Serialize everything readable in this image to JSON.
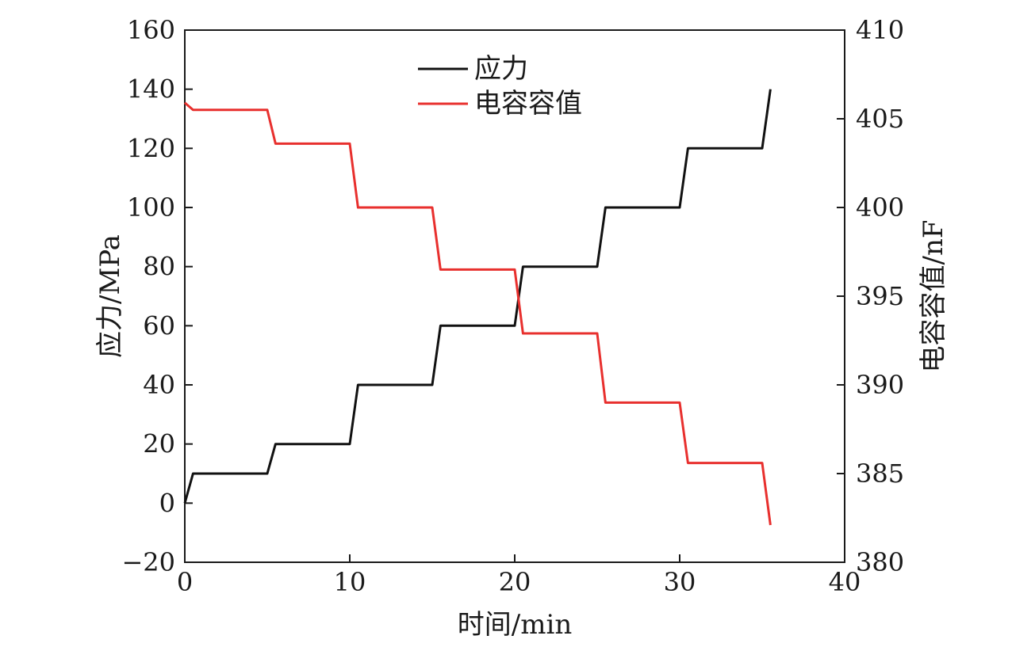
{
  "chart_data": {
    "type": "line",
    "title": "",
    "xlabel": "时间/min",
    "ylabel_left": "应力/MPa",
    "ylabel_right": "电容容值/nF",
    "xlim": [
      0,
      40
    ],
    "ylim_left": [
      -20,
      160
    ],
    "ylim_right": [
      380,
      410
    ],
    "x_ticks": [
      "0",
      "10",
      "20",
      "30",
      "40"
    ],
    "y_left_ticks": [
      "−20",
      "0",
      "20",
      "40",
      "60",
      "80",
      "100",
      "120",
      "140",
      "160"
    ],
    "y_right_ticks": [
      "380",
      "385",
      "390",
      "395",
      "400",
      "405",
      "410"
    ],
    "grid": false,
    "legend_position": "top-center",
    "series": [
      {
        "name": "应力",
        "axis": "left",
        "color": "#111111",
        "x": [
          0,
          0.5,
          5,
          5.5,
          10,
          10.5,
          15,
          15.5,
          20,
          20.5,
          25,
          25.5,
          30,
          30.5,
          35,
          35.5
        ],
        "y": [
          0,
          10,
          10,
          20,
          20,
          40,
          40,
          60,
          60,
          80,
          80,
          100,
          100,
          120,
          120,
          140
        ]
      },
      {
        "name": "电容容值",
        "axis": "right",
        "color": "#e8302e",
        "x": [
          0,
          0.5,
          5,
          5.5,
          10,
          10.5,
          15,
          15.5,
          20,
          20.5,
          25,
          25.5,
          30,
          30.5,
          35,
          35.5
        ],
        "y": [
          405.9,
          405.5,
          405.5,
          403.6,
          403.6,
          400.0,
          400.0,
          396.5,
          396.5,
          392.9,
          392.9,
          389.0,
          389.0,
          385.6,
          385.6,
          382.1
        ]
      }
    ]
  }
}
